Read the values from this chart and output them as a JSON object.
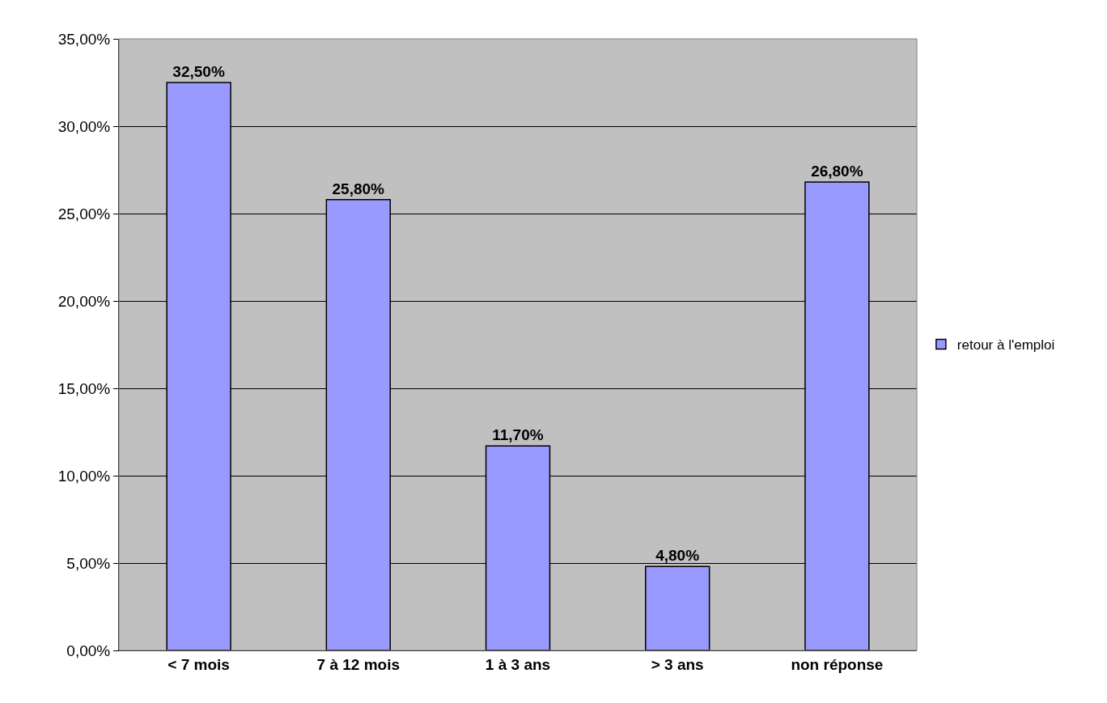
{
  "chart_data": {
    "type": "bar",
    "categories": [
      "< 7 mois",
      "7 à 12 mois",
      "1 à 3 ans",
      "> 3 ans",
      "non réponse"
    ],
    "series": [
      {
        "name": "retour à l'emploi",
        "color": "#9999ff",
        "values": [
          32.5,
          25.8,
          11.7,
          4.8,
          26.8
        ],
        "value_labels": [
          "32,50%",
          "25,80%",
          "11,70%",
          "4,80%",
          "26,80%"
        ]
      }
    ],
    "ylim": [
      0,
      35
    ],
    "yticks": [
      {
        "value": 0,
        "label": "0,00%"
      },
      {
        "value": 5,
        "label": "5,00%"
      },
      {
        "value": 10,
        "label": "10,00%"
      },
      {
        "value": 15,
        "label": "15,00%"
      },
      {
        "value": 20,
        "label": "20,00%"
      },
      {
        "value": 25,
        "label": "25,00%"
      },
      {
        "value": 30,
        "label": "30,00%"
      },
      {
        "value": 35,
        "label": "35,00%"
      }
    ],
    "grid": "y",
    "legend": "right"
  }
}
